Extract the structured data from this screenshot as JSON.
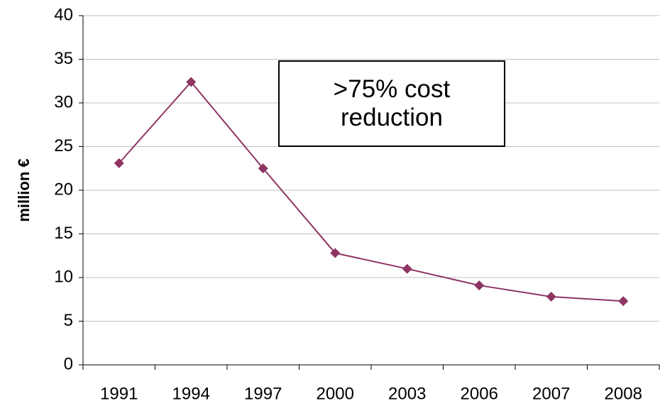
{
  "chart_data": {
    "type": "line",
    "categories": [
      "1991",
      "1994",
      "1997",
      "2000",
      "2003",
      "2006",
      "2007",
      "2008"
    ],
    "values": [
      23.1,
      32.4,
      22.5,
      12.8,
      11.0,
      9.1,
      7.8,
      7.3
    ],
    "color": "#8e3563",
    "ylabel": "million €",
    "annotation": ">75% cost reduction",
    "ylim": [
      0,
      40
    ],
    "yticks": [
      0,
      5,
      10,
      15,
      20,
      25,
      30,
      35,
      40
    ],
    "grid": true
  }
}
